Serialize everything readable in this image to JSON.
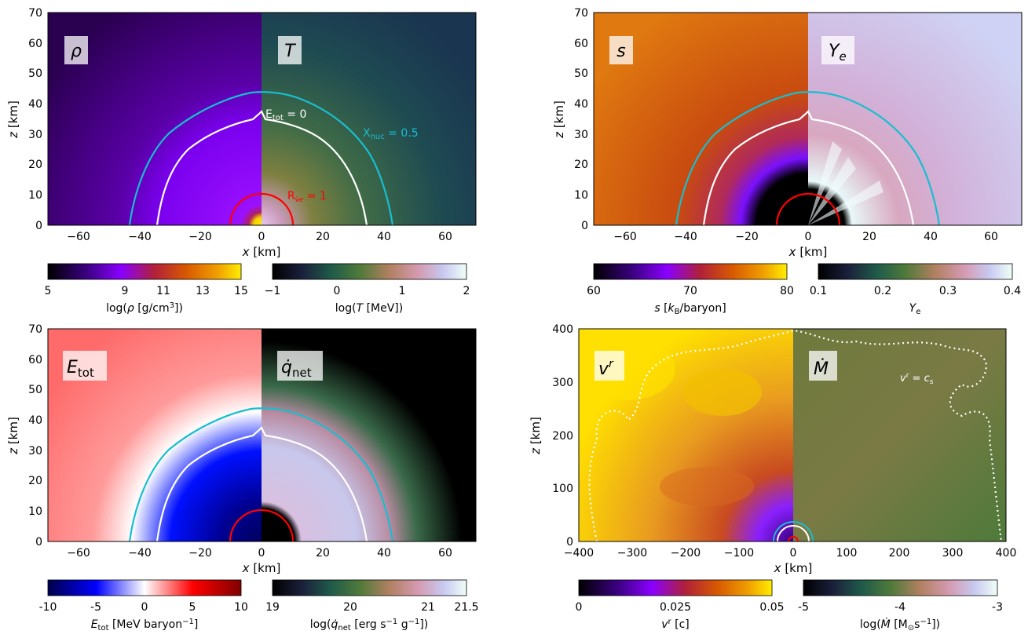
{
  "chart_data": [
    {
      "type": "heatmap",
      "panel": "top-left",
      "xlabel": "x [km]",
      "ylabel": "z [km]",
      "xlim": [
        -70,
        70
      ],
      "ylim": [
        0,
        70
      ],
      "xticks": [
        -60,
        -40,
        -20,
        0,
        20,
        40,
        60
      ],
      "yticks": [
        0,
        10,
        20,
        30,
        40,
        50,
        60,
        70
      ],
      "left_field": "ρ",
      "right_field": "T",
      "contours": [
        {
          "label": "X_nuc = 0.5",
          "color": "#17becf",
          "radius_km": 43
        },
        {
          "label": "E_tot = 0",
          "color": "#ffffff",
          "radius_km": 35
        },
        {
          "label": "R_ν̄e = 1",
          "color": "#ff0000",
          "radius_km": 10.5
        }
      ],
      "colorbars": [
        {
          "label": "log(ρ [g/cm³])",
          "ticks": [
            "5",
            "9",
            "11",
            "13",
            "15"
          ],
          "range": [
            5,
            15
          ],
          "cmap": "gnuplot"
        },
        {
          "label": "log(T [MeV])",
          "ticks": [
            "−1",
            "0",
            "1",
            "2"
          ],
          "range": [
            -1,
            2
          ],
          "cmap": "cubehelix"
        }
      ]
    },
    {
      "type": "heatmap",
      "panel": "top-right",
      "xlabel": "x [km]",
      "ylabel": "z [km]",
      "xlim": [
        -70,
        70
      ],
      "ylim": [
        0,
        70
      ],
      "xticks": [
        -60,
        -40,
        -20,
        0,
        20,
        40,
        60
      ],
      "yticks": [
        0,
        10,
        20,
        30,
        40,
        50,
        60,
        70
      ],
      "left_field": "s",
      "right_field": "Ye",
      "contours": [
        {
          "color": "#17becf",
          "radius_km": 43
        },
        {
          "color": "#ffffff",
          "radius_km": 35
        },
        {
          "color": "#ff0000",
          "radius_km": 10.5
        }
      ],
      "colorbars": [
        {
          "label": "s [kB/baryon]",
          "ticks": [
            "60",
            "70",
            "80"
          ],
          "range": [
            60,
            80
          ],
          "cmap": "gnuplot"
        },
        {
          "label": "Ye",
          "ticks": [
            "0.1",
            "0.2",
            "0.3",
            "0.4"
          ],
          "range": [
            0.1,
            0.4
          ],
          "cmap": "cubehelix"
        }
      ]
    },
    {
      "type": "heatmap",
      "panel": "bottom-left",
      "xlabel": "x [km]",
      "ylabel": "z [km]",
      "xlim": [
        -70,
        70
      ],
      "ylim": [
        0,
        70
      ],
      "xticks": [
        -60,
        -40,
        -20,
        0,
        20,
        40,
        60
      ],
      "yticks": [
        0,
        10,
        20,
        30,
        40,
        50,
        60,
        70
      ],
      "left_field": "Etot",
      "right_field": "q̇net",
      "contours": [
        {
          "color": "#17becf",
          "radius_km": 43
        },
        {
          "color": "#ffffff",
          "radius_km": 35
        },
        {
          "color": "#ff0000",
          "radius_km": 10.5
        }
      ],
      "colorbars": [
        {
          "label": "Etot [MeV baryon⁻¹]",
          "ticks": [
            "-10",
            "-5",
            "0",
            "5",
            "10"
          ],
          "range": [
            -10,
            10
          ],
          "cmap": "seismic"
        },
        {
          "label": "log(q̇net [erg s⁻¹ g⁻¹])",
          "ticks": [
            "19",
            "20",
            "21",
            "21.5"
          ],
          "range": [
            19,
            21.5
          ],
          "cmap": "cubehelix"
        }
      ]
    },
    {
      "type": "heatmap",
      "panel": "bottom-right",
      "xlabel": "x [km]",
      "ylabel": "z [km]",
      "xlim": [
        -400,
        400
      ],
      "ylim": [
        0,
        400
      ],
      "xticks": [
        -400,
        -300,
        -200,
        -100,
        0,
        100,
        200,
        300,
        400
      ],
      "yticks": [
        0,
        100,
        200,
        300,
        400
      ],
      "left_field": "v^r",
      "right_field": "Ṁ",
      "contours": [
        {
          "label": "v^r = c_s",
          "color": "#ffffff",
          "style": "dotted"
        }
      ],
      "colorbars": [
        {
          "label": "v^r [c]",
          "ticks": [
            "0",
            "0.025",
            "0.05"
          ],
          "range": [
            0,
            0.05
          ],
          "cmap": "gnuplot"
        },
        {
          "label": "log(Ṁ [M⊙s⁻¹])",
          "ticks": [
            "-5",
            "-4",
            "-3"
          ],
          "range": [
            -5,
            -3
          ],
          "cmap": "cubehelix"
        }
      ]
    }
  ]
}
